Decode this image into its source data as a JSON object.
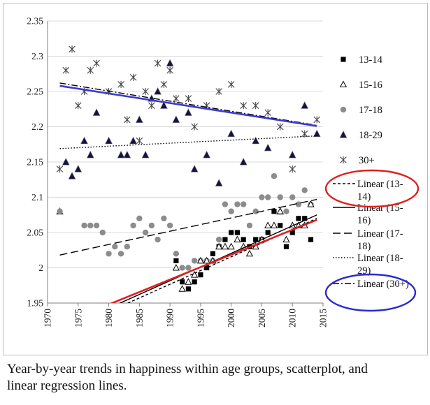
{
  "chart_data": {
    "type": "scatter",
    "title": "",
    "xlabel": "",
    "ylabel": "",
    "xlim": [
      1970,
      2015
    ],
    "ylim": [
      1.95,
      2.35
    ],
    "x_ticks": [
      "1970",
      "1975",
      "1980",
      "1985",
      "1990",
      "1995",
      "2000",
      "2005",
      "2010",
      "2015"
    ],
    "y_ticks": [
      "1.95",
      "2",
      "2.05",
      "2.1",
      "2.15",
      "2.2",
      "2.25",
      "2.3",
      "2.35"
    ],
    "grid": "y-major",
    "legend_position": "right",
    "series": [
      {
        "name": "13-14",
        "marker": "square",
        "color": "#000000",
        "points": [
          [
            1991,
            2.01
          ],
          [
            1992,
            1.98
          ],
          [
            1993,
            1.97
          ],
          [
            1994,
            1.98
          ],
          [
            1995,
            1.99
          ],
          [
            1996,
            2.0
          ],
          [
            1997,
            2.02
          ],
          [
            1998,
            2.03
          ],
          [
            1999,
            2.04
          ],
          [
            2000,
            2.05
          ],
          [
            2001,
            2.05
          ],
          [
            2002,
            2.04
          ],
          [
            2003,
            2.03
          ],
          [
            2004,
            2.04
          ],
          [
            2005,
            2.04
          ],
          [
            2006,
            2.05
          ],
          [
            2007,
            2.08
          ],
          [
            2008,
            2.06
          ],
          [
            2009,
            2.03
          ],
          [
            2010,
            2.05
          ],
          [
            2011,
            2.07
          ],
          [
            2012,
            2.07
          ],
          [
            2013,
            2.04
          ]
        ]
      },
      {
        "name": "15-16",
        "marker": "triangle-open",
        "color": "#000000",
        "points": [
          [
            1991,
            2.0
          ],
          [
            1992,
            1.97
          ],
          [
            1993,
            1.98
          ],
          [
            1994,
            1.99
          ],
          [
            1995,
            2.01
          ],
          [
            1996,
            2.01
          ],
          [
            1997,
            2.01
          ],
          [
            1998,
            2.03
          ],
          [
            1999,
            2.03
          ],
          [
            2000,
            2.03
          ],
          [
            2001,
            2.04
          ],
          [
            2002,
            2.03
          ],
          [
            2003,
            2.02
          ],
          [
            2004,
            2.03
          ],
          [
            2005,
            2.04
          ],
          [
            2006,
            2.06
          ],
          [
            2007,
            2.06
          ],
          [
            2008,
            2.08
          ],
          [
            2009,
            2.04
          ],
          [
            2010,
            2.06
          ],
          [
            2011,
            2.06
          ],
          [
            2012,
            2.06
          ],
          [
            2013,
            2.09
          ]
        ]
      },
      {
        "name": "17-18",
        "marker": "circle",
        "color": "#8c8c8c",
        "points": [
          [
            1972,
            2.08
          ],
          [
            1976,
            2.06
          ],
          [
            1977,
            2.06
          ],
          [
            1978,
            2.06
          ],
          [
            1979,
            2.05
          ],
          [
            1980,
            2.02
          ],
          [
            1981,
            2.03
          ],
          [
            1982,
            2.02
          ],
          [
            1983,
            2.03
          ],
          [
            1984,
            2.06
          ],
          [
            1985,
            2.07
          ],
          [
            1986,
            2.05
          ],
          [
            1987,
            2.06
          ],
          [
            1988,
            2.04
          ],
          [
            1989,
            2.07
          ],
          [
            1990,
            2.06
          ],
          [
            1991,
            2.02
          ],
          [
            1992,
            2.0
          ],
          [
            1993,
            2.0
          ],
          [
            1994,
            2.01
          ],
          [
            1995,
            2.01
          ],
          [
            1996,
            2.01
          ],
          [
            1997,
            2.01
          ],
          [
            1998,
            2.04
          ],
          [
            1999,
            2.09
          ],
          [
            2000,
            2.08
          ],
          [
            2001,
            2.09
          ],
          [
            2002,
            2.09
          ],
          [
            2003,
            2.06
          ],
          [
            2004,
            2.08
          ],
          [
            2005,
            2.1
          ],
          [
            2006,
            2.1
          ],
          [
            2007,
            2.13
          ],
          [
            2008,
            2.1
          ],
          [
            2009,
            2.08
          ],
          [
            2010,
            2.1
          ],
          [
            2011,
            2.09
          ],
          [
            2012,
            2.11
          ],
          [
            2013,
            2.09
          ]
        ]
      },
      {
        "name": "18-29",
        "marker": "triangle",
        "color": "#14143c",
        "points": [
          [
            1972,
            2.08
          ],
          [
            1973,
            2.15
          ],
          [
            1974,
            2.13
          ],
          [
            1975,
            2.14
          ],
          [
            1976,
            2.18
          ],
          [
            1977,
            2.16
          ],
          [
            1978,
            2.22
          ],
          [
            1980,
            2.18
          ],
          [
            1982,
            2.16
          ],
          [
            1983,
            2.16
          ],
          [
            1984,
            2.18
          ],
          [
            1985,
            2.21
          ],
          [
            1986,
            2.16
          ],
          [
            1987,
            2.24
          ],
          [
            1988,
            2.25
          ],
          [
            1989,
            2.23
          ],
          [
            1990,
            2.29
          ],
          [
            1991,
            2.21
          ],
          [
            1993,
            2.22
          ],
          [
            1994,
            2.14
          ],
          [
            1996,
            2.16
          ],
          [
            1998,
            2.12
          ],
          [
            2000,
            2.19
          ],
          [
            2002,
            2.15
          ],
          [
            2004,
            2.18
          ],
          [
            2006,
            2.17
          ],
          [
            2008,
            2.08
          ],
          [
            2010,
            2.16
          ],
          [
            2012,
            2.23
          ],
          [
            2014,
            2.19
          ]
        ]
      },
      {
        "name": "30+",
        "marker": "asterisk",
        "color": "#444444",
        "points": [
          [
            1972,
            2.14
          ],
          [
            1973,
            2.28
          ],
          [
            1974,
            2.31
          ],
          [
            1975,
            2.23
          ],
          [
            1976,
            2.25
          ],
          [
            1977,
            2.28
          ],
          [
            1978,
            2.29
          ],
          [
            1980,
            2.25
          ],
          [
            1982,
            2.26
          ],
          [
            1983,
            2.21
          ],
          [
            1984,
            2.27
          ],
          [
            1985,
            2.18
          ],
          [
            1986,
            2.25
          ],
          [
            1987,
            2.23
          ],
          [
            1988,
            2.29
          ],
          [
            1989,
            2.26
          ],
          [
            1990,
            2.28
          ],
          [
            1991,
            2.24
          ],
          [
            1993,
            2.24
          ],
          [
            1994,
            2.2
          ],
          [
            1996,
            2.23
          ],
          [
            1998,
            2.25
          ],
          [
            2000,
            2.26
          ],
          [
            2002,
            2.23
          ],
          [
            2004,
            2.23
          ],
          [
            2006,
            2.22
          ],
          [
            2008,
            2.2
          ],
          [
            2010,
            2.14
          ],
          [
            2012,
            2.19
          ],
          [
            2014,
            2.21
          ]
        ]
      }
    ],
    "trendlines": [
      {
        "name": "Linear (13-14)",
        "style": "short-dash",
        "color": "#000000",
        "x": [
          1978,
          2014
        ],
        "y": [
          1.93,
          2.07
        ]
      },
      {
        "name": "Linear (15-16)",
        "style": "solid",
        "color": "#000000",
        "x": [
          1978,
          2014
        ],
        "y": [
          1.935,
          2.075
        ]
      },
      {
        "name": "Linear (17-18)",
        "style": "long-dash",
        "color": "#000000",
        "x": [
          1972,
          2014
        ],
        "y": [
          2.018,
          2.097
        ]
      },
      {
        "name": "Linear (18-29)",
        "style": "dotted",
        "color": "#000000",
        "x": [
          1972,
          2014
        ],
        "y": [
          2.169,
          2.187
        ]
      },
      {
        "name": "Linear (30+)",
        "style": "dash-dot",
        "color": "#000000",
        "x": [
          1972,
          2014
        ],
        "y": [
          2.262,
          2.202
        ]
      }
    ],
    "highlight_lines": [
      {
        "color": "#3a3ad0",
        "x": [
          1972,
          2014
        ],
        "y": [
          2.258,
          2.201
        ]
      },
      {
        "color": "#e02020",
        "x": [
          1980,
          2014
        ],
        "y": [
          1.948,
          2.068
        ]
      }
    ],
    "legend_highlights": [
      {
        "item": "Linear (13-14)",
        "shape": "ellipse",
        "color": "#e02020"
      },
      {
        "item": "Linear (30+)",
        "shape": "ellipse",
        "color": "#2a2ad0"
      }
    ]
  },
  "caption": "Year-by-year trends in happiness within age groups, scatterplot, and linear regression lines."
}
